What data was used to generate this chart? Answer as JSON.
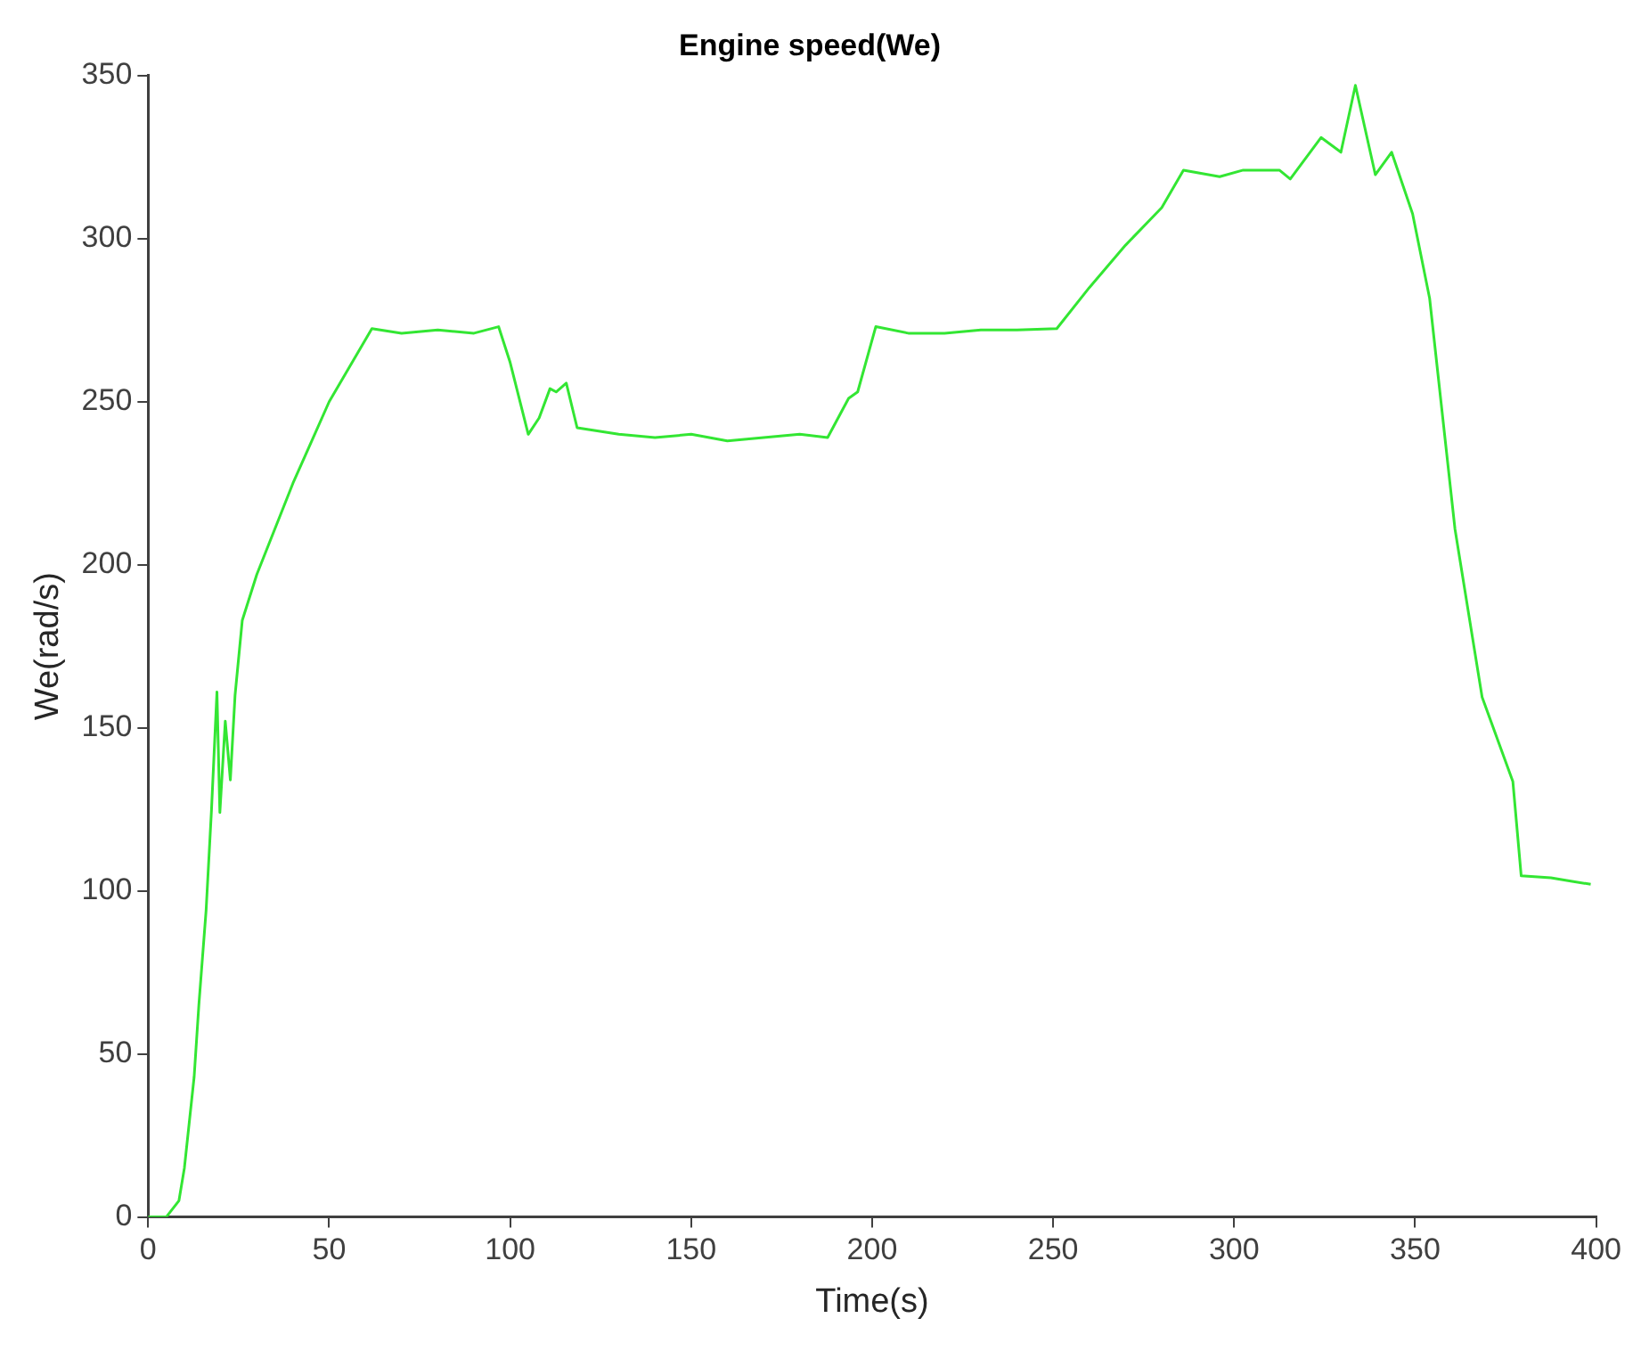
{
  "chart_data": {
    "type": "line",
    "title": "Engine speed(We)",
    "xlabel": "Time(s)",
    "ylabel": "We(rad/s)",
    "xlim": [
      0,
      400
    ],
    "ylim": [
      0,
      350
    ],
    "xticks": [
      0,
      50,
      100,
      150,
      200,
      250,
      300,
      350,
      400
    ],
    "yticks": [
      0,
      50,
      100,
      150,
      200,
      250,
      300,
      350
    ],
    "legend": false,
    "marker": "none",
    "line_style": "solid",
    "series": [
      {
        "color": "#33e633",
        "x": [
          0,
          5,
          8.5,
          10,
          12.7,
          14,
          16,
          17.5,
          19,
          19.8,
          21.3,
          22.7,
          24,
          26,
          30,
          40,
          50,
          61.8,
          70,
          80,
          90,
          96.8,
          100,
          105,
          108,
          111,
          112.7,
          115.5,
          118.5,
          130,
          140,
          150,
          160,
          170,
          180,
          187.7,
          193.5,
          196,
          201,
          210,
          220,
          230,
          240,
          251,
          260,
          270,
          280,
          286,
          296,
          302.5,
          312.5,
          315.5,
          324,
          329.5,
          333.5,
          339,
          343.5,
          349.3,
          354,
          361,
          368.5,
          377,
          379.3,
          387.5,
          393,
          398.5
        ],
        "values": [
          0,
          0,
          5,
          15,
          43,
          65,
          94,
          125,
          161,
          124,
          152,
          134,
          160,
          183,
          197,
          225,
          250,
          272.4,
          271,
          272,
          271,
          273,
          262,
          240,
          245,
          254,
          253,
          255.7,
          242,
          240,
          239,
          240,
          238,
          239,
          240,
          239,
          251,
          253,
          273,
          271,
          271,
          272,
          272,
          272.4,
          285,
          298,
          309.5,
          321,
          319,
          321,
          321,
          318.3,
          331,
          326.5,
          347,
          319.6,
          326.5,
          307.6,
          281.7,
          211,
          159.4,
          133.5,
          104.6,
          104,
          103,
          102
        ]
      }
    ]
  }
}
